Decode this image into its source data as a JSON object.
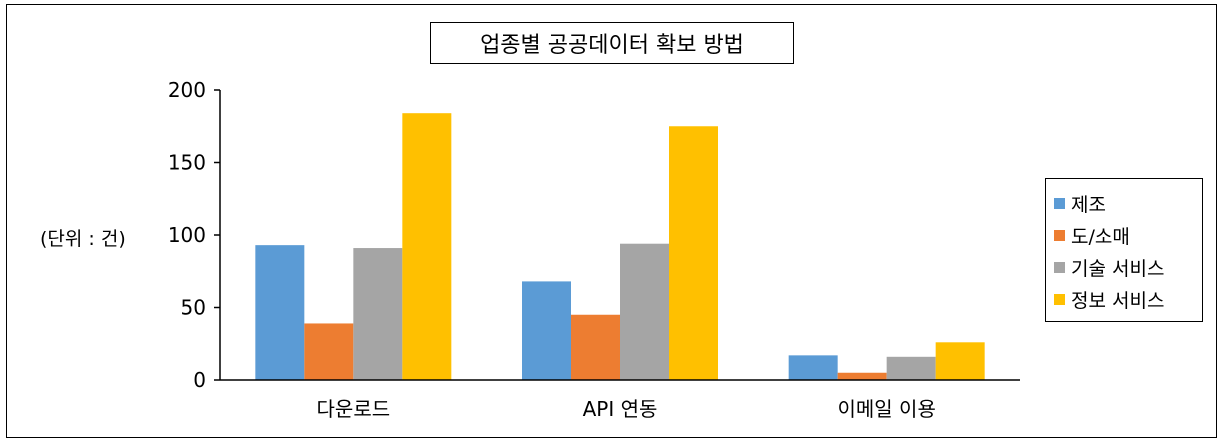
{
  "chart_data": {
    "type": "bar",
    "title": "업종별 공공데이터 확보 방법",
    "ylabel": "(단위 : 건)",
    "xlabel": "",
    "categories": [
      "다운로드",
      "API 연동",
      "이메일 이용"
    ],
    "series": [
      {
        "name": "제조",
        "color": "#5B9BD5",
        "values": [
          93,
          68,
          17
        ]
      },
      {
        "name": "도/소매",
        "color": "#ED7D31",
        "values": [
          39,
          45,
          5
        ]
      },
      {
        "name": "기술 서비스",
        "color": "#A5A5A5",
        "values": [
          91,
          94,
          16
        ]
      },
      {
        "name": "정보 서비스",
        "color": "#FFC000",
        "values": [
          184,
          175,
          26
        ]
      }
    ],
    "ylim": [
      0,
      200
    ],
    "yticks": [
      "0",
      "50",
      "100",
      "150",
      "200"
    ],
    "grid": false,
    "legend_position": "right"
  }
}
